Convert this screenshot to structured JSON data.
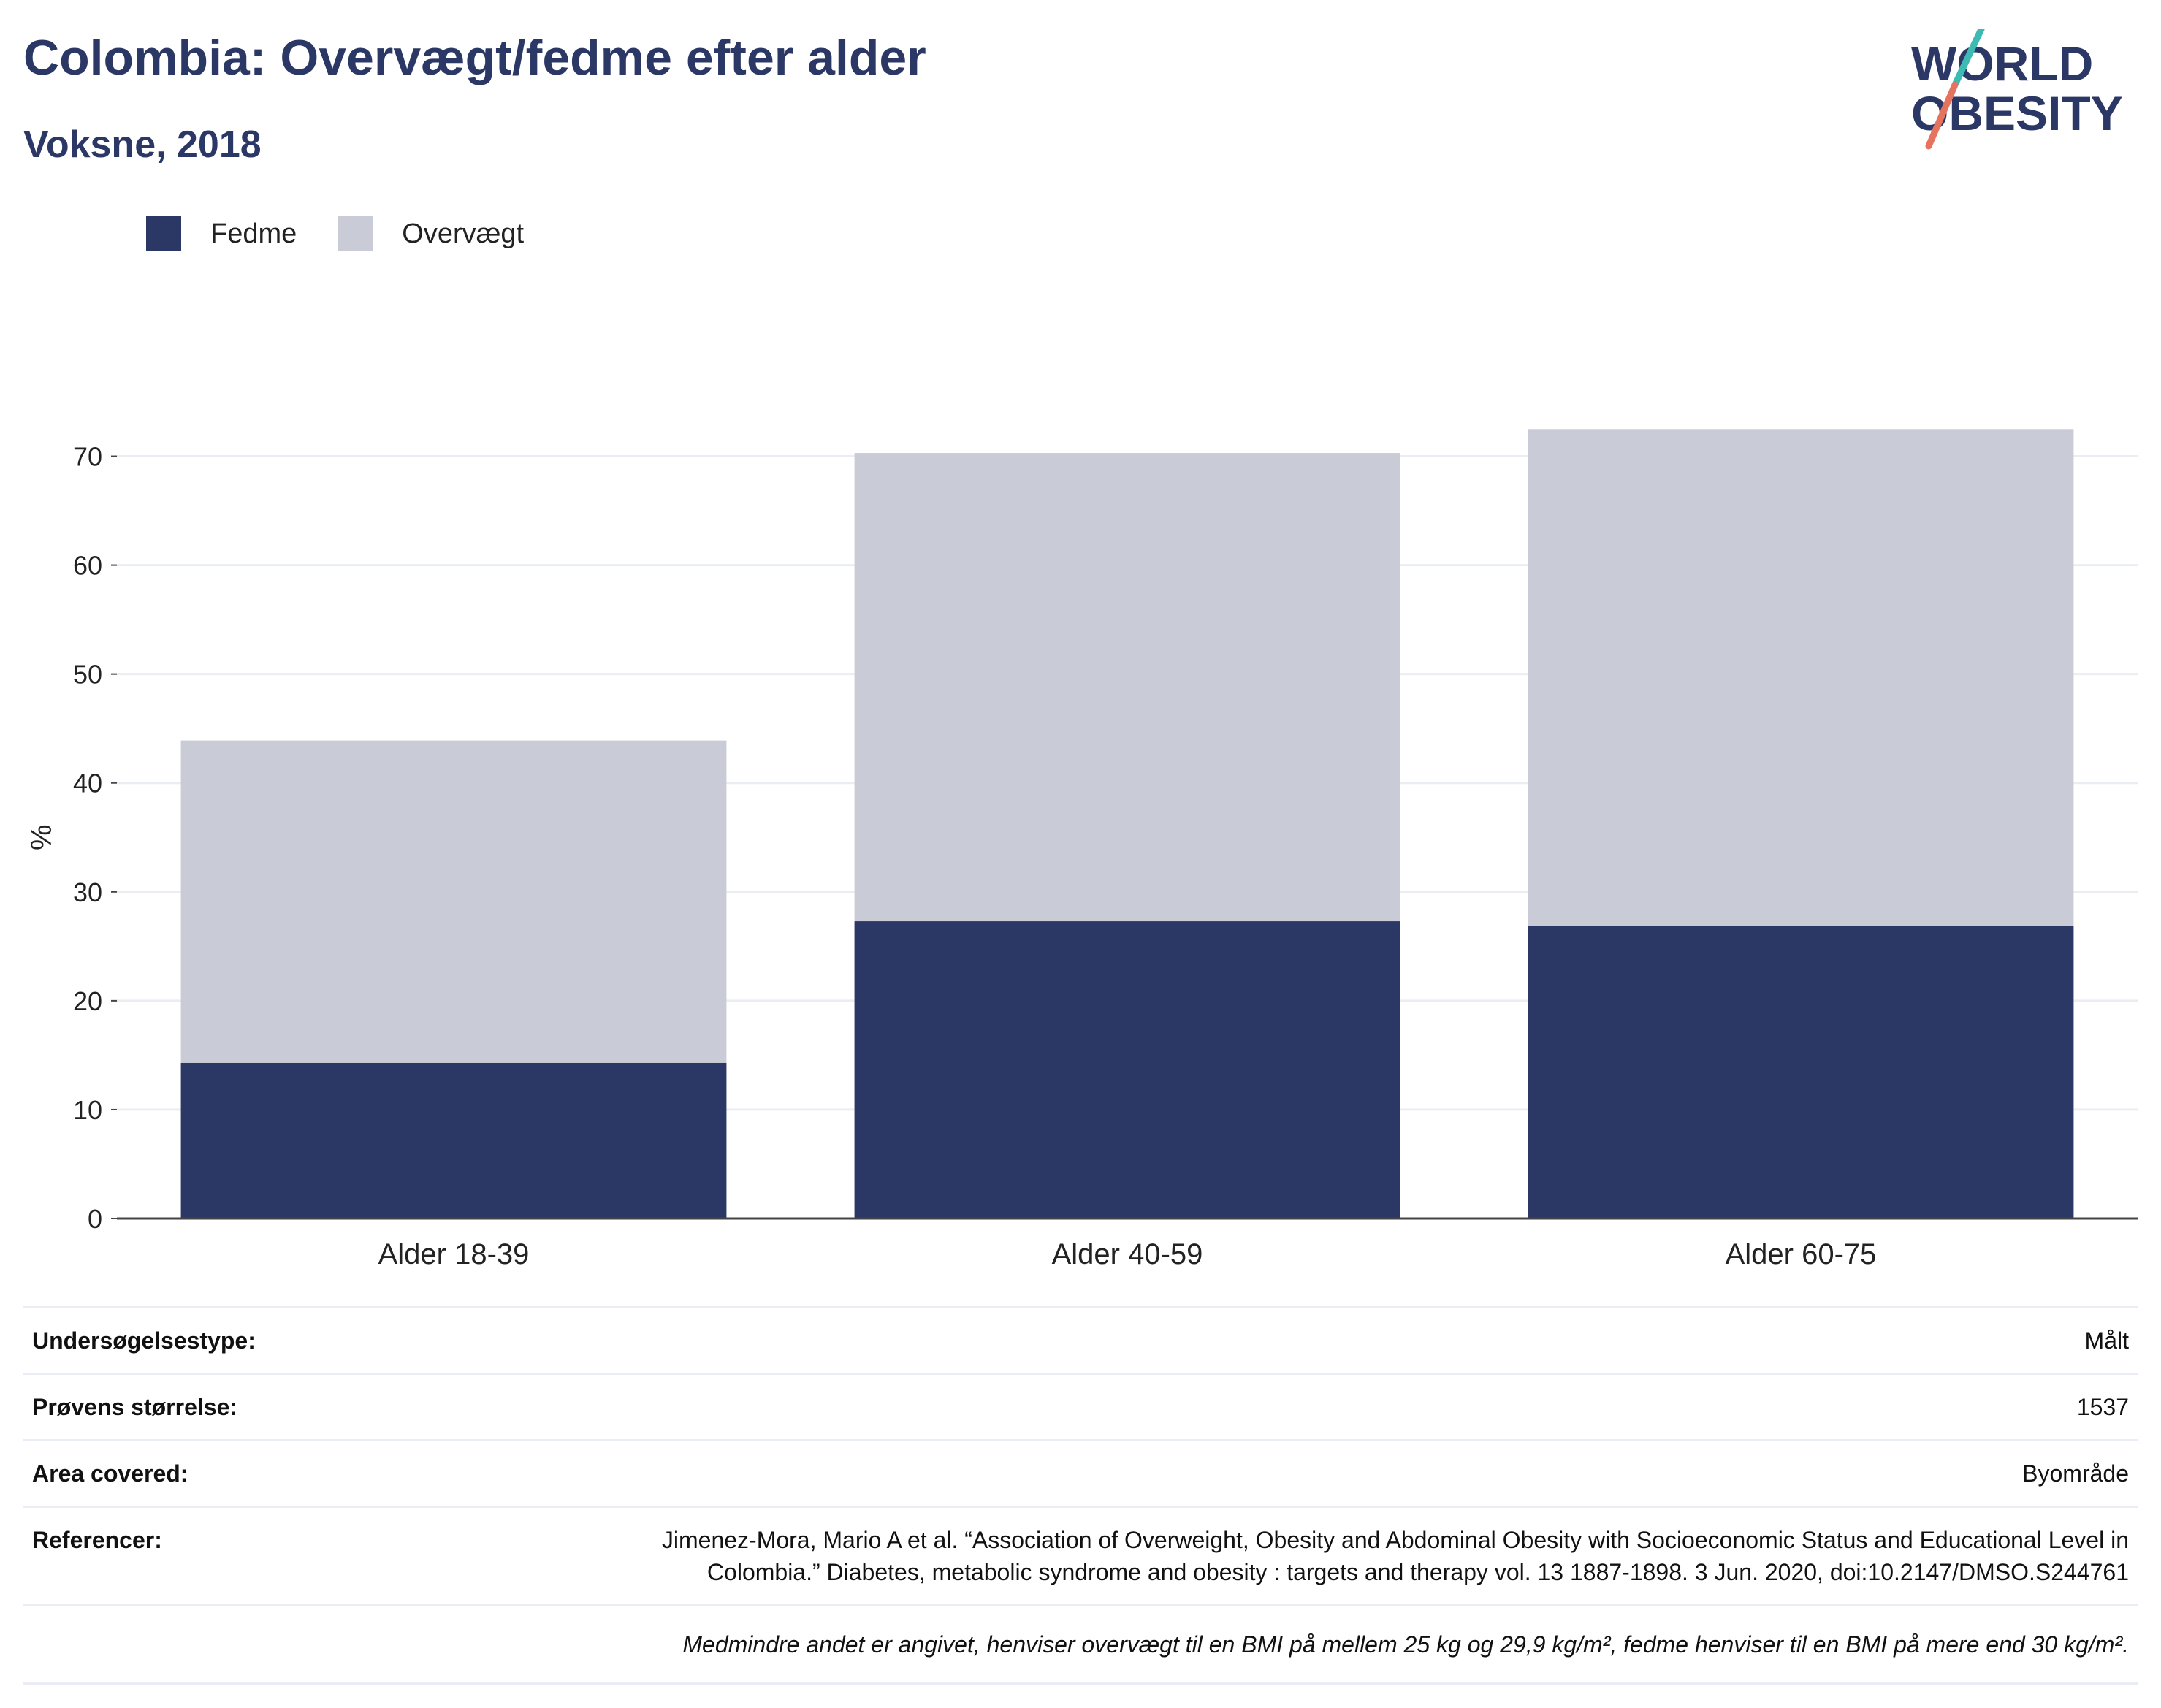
{
  "header": {
    "title": "Colombia: Overvægt/fedme efter alder",
    "subtitle": "Voksne, 2018"
  },
  "logo": {
    "line1": "WORLD",
    "line2": "OBESITY"
  },
  "colors": {
    "fedme": "#2b3765",
    "overvaegt": "#c9cbd7",
    "title": "#2b3765",
    "logo_teal": "#3bbbb3",
    "logo_coral": "#e6735e"
  },
  "legend": {
    "items": [
      "Fedme",
      "Overvægt"
    ]
  },
  "chart_data": {
    "type": "bar",
    "stacked": true,
    "categories": [
      "Alder 18-39",
      "Alder 40-59",
      "Alder 60-75"
    ],
    "series": [
      {
        "name": "Fedme",
        "values": [
          14.3,
          27.3,
          26.9
        ]
      },
      {
        "name": "Overvægt",
        "values": [
          29.6,
          43.0,
          45.6
        ]
      }
    ],
    "totals": [
      43.9,
      70.3,
      72.5
    ],
    "ylabel": "%",
    "ylim": [
      0,
      75
    ],
    "yticks": [
      0,
      10,
      20,
      30,
      40,
      50,
      60,
      70
    ],
    "grid": true,
    "legend_position": "top-left"
  },
  "meta": {
    "rows": [
      {
        "key": "Undersøgelsestype:",
        "value": "Målt"
      },
      {
        "key": "Prøvens størrelse:",
        "value": "1537"
      },
      {
        "key": "Area covered:",
        "value": "Byområde"
      },
      {
        "key": "Referencer:",
        "value": "Jimenez-Mora, Mario A et al. “Association of Overweight, Obesity and Abdominal Obesity with Socioeconomic Status and Educational Level in Colombia.” Diabetes, metabolic syndrome and obesity : targets and therapy vol. 13 1887-1898. 3 Jun. 2020, doi:10.2147/DMSO.S244761"
      }
    ],
    "note": "Medmindre andet er angivet, henviser overvægt til en BMI på mellem 25 kg og 29,9 kg/m², fedme henviser til en BMI på mere end 30 kg/m²."
  }
}
